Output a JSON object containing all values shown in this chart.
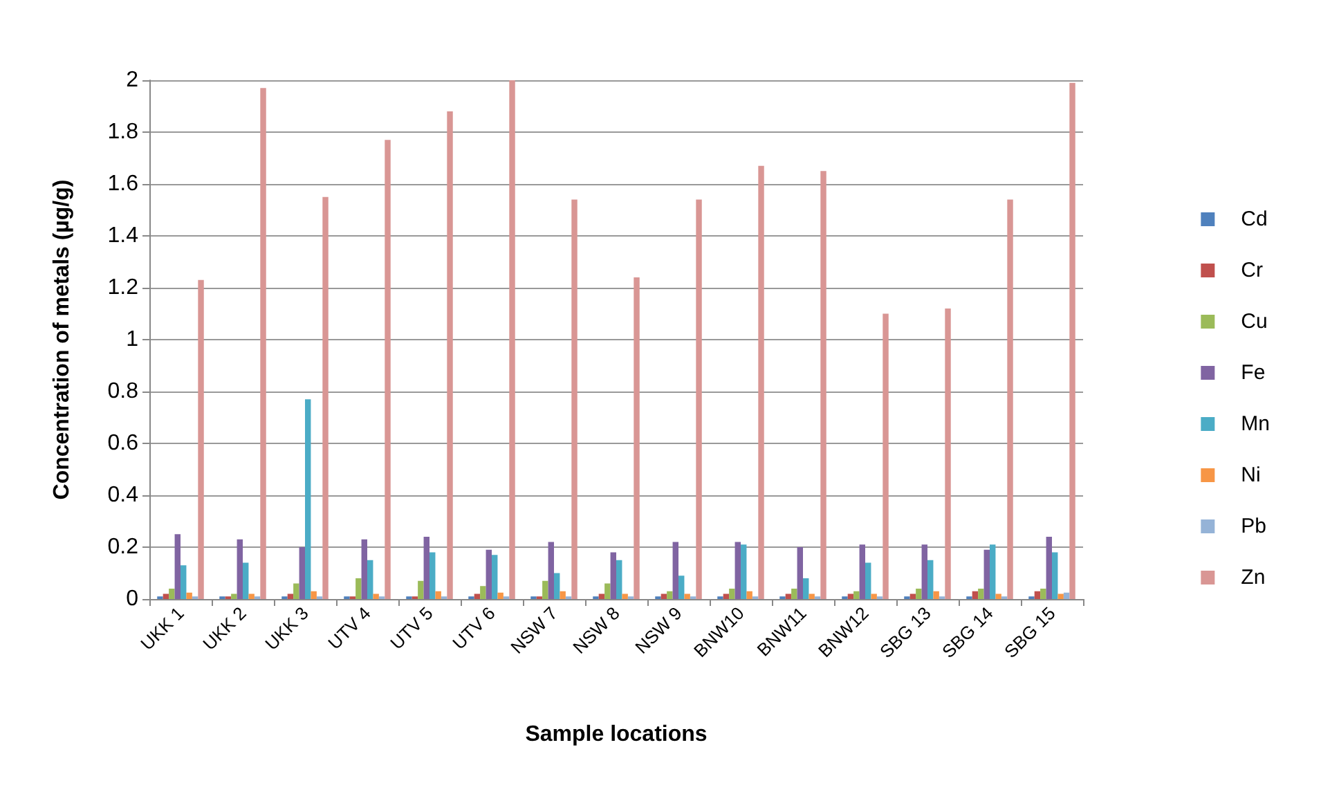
{
  "chart_data": {
    "type": "bar",
    "xlabel": "Sample locations",
    "ylabel": "Concentration of metals (µg/g)",
    "categories": [
      "UKK 1",
      "UKK 2",
      "UKK 3",
      "UTV 4",
      "UTV 5",
      "UTV 6",
      "NSW 7",
      "NSW 8",
      "NSW 9",
      "BNW10",
      "BNW11",
      "BNW12",
      "SBG 13",
      "SBG 14",
      "SBG 15"
    ],
    "series": [
      {
        "name": "Cd",
        "color": "#4f81bd",
        "values": [
          0.01,
          0.01,
          0.01,
          0.01,
          0.01,
          0.01,
          0.01,
          0.01,
          0.01,
          0.01,
          0.01,
          0.01,
          0.01,
          0.01,
          0.01
        ]
      },
      {
        "name": "Cr",
        "color": "#c0504d",
        "values": [
          0.02,
          0.01,
          0.02,
          0.01,
          0.01,
          0.02,
          0.01,
          0.02,
          0.02,
          0.02,
          0.02,
          0.02,
          0.02,
          0.03,
          0.03
        ]
      },
      {
        "name": "Cu",
        "color": "#9bbb59",
        "values": [
          0.04,
          0.02,
          0.06,
          0.08,
          0.07,
          0.05,
          0.07,
          0.06,
          0.03,
          0.04,
          0.04,
          0.03,
          0.04,
          0.04,
          0.04
        ]
      },
      {
        "name": "Fe",
        "color": "#8064a2",
        "values": [
          0.25,
          0.23,
          0.2,
          0.23,
          0.24,
          0.19,
          0.22,
          0.18,
          0.22,
          0.22,
          0.2,
          0.21,
          0.21,
          0.19,
          0.24
        ]
      },
      {
        "name": "Mn",
        "color": "#4bacc6",
        "values": [
          0.13,
          0.14,
          0.77,
          0.15,
          0.18,
          0.17,
          0.1,
          0.15,
          0.09,
          0.21,
          0.08,
          0.14,
          0.15,
          0.21,
          0.18
        ]
      },
      {
        "name": "Ni",
        "color": "#f79646",
        "values": [
          0.025,
          0.02,
          0.03,
          0.02,
          0.03,
          0.025,
          0.03,
          0.02,
          0.02,
          0.03,
          0.02,
          0.02,
          0.03,
          0.02,
          0.02
        ]
      },
      {
        "name": "Pb",
        "color": "#95b3d7",
        "values": [
          0.01,
          0.01,
          0.01,
          0.01,
          0.01,
          0.01,
          0.01,
          0.01,
          0.01,
          0.01,
          0.01,
          0.01,
          0.01,
          0.01,
          0.025
        ]
      },
      {
        "name": "Zn",
        "color": "#d99694",
        "values": [
          1.23,
          1.97,
          1.55,
          1.77,
          1.88,
          2.0,
          1.54,
          1.24,
          1.54,
          1.67,
          1.65,
          1.1,
          1.12,
          1.54,
          1.99
        ]
      }
    ],
    "ylim": [
      0,
      2
    ],
    "yticks": [
      0,
      0.2,
      0.4,
      0.6,
      0.8,
      1,
      1.2,
      1.4,
      1.6,
      1.8,
      2
    ],
    "grid": "y",
    "legend": "right"
  }
}
